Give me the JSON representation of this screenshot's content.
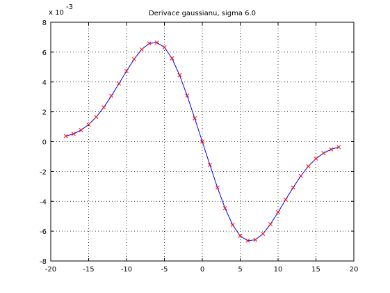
{
  "chart_data": {
    "type": "line",
    "title": "Derivace gaussianu, sigma 6.0",
    "xlabel": "",
    "ylabel": "",
    "y_exponent_label": {
      "base": "x 10",
      "power": "-3"
    },
    "xlim": [
      -20,
      20
    ],
    "ylim": [
      -8,
      8
    ],
    "xticks": [
      -20,
      -15,
      -10,
      -5,
      0,
      5,
      10,
      15,
      20
    ],
    "yticks": [
      -8,
      -6,
      -4,
      -2,
      0,
      2,
      4,
      6,
      8
    ],
    "grid": true,
    "series": [
      {
        "line_color": "#0000ff",
        "marker": "x",
        "marker_color": "#ff0000",
        "x": [
          -18,
          -17,
          -16,
          -15,
          -14,
          -13,
          -12,
          -11,
          -10,
          -9,
          -8,
          -7,
          -6,
          -5,
          -4,
          -3,
          -2,
          -1,
          0,
          1,
          2,
          3,
          4,
          5,
          6,
          7,
          8,
          9,
          10,
          11,
          12,
          13,
          14,
          15,
          16,
          17,
          18
        ],
        "y": [
          0.37,
          0.52,
          0.77,
          1.14,
          1.65,
          2.3,
          3.07,
          3.89,
          4.73,
          5.53,
          6.18,
          6.58,
          6.64,
          6.32,
          5.58,
          4.46,
          3.08,
          1.56,
          0.0,
          -1.56,
          -3.08,
          -4.46,
          -5.58,
          -6.32,
          -6.64,
          -6.58,
          -6.18,
          -5.53,
          -4.73,
          -3.89,
          -3.07,
          -2.3,
          -1.65,
          -1.14,
          -0.77,
          -0.52,
          -0.37
        ]
      }
    ]
  }
}
